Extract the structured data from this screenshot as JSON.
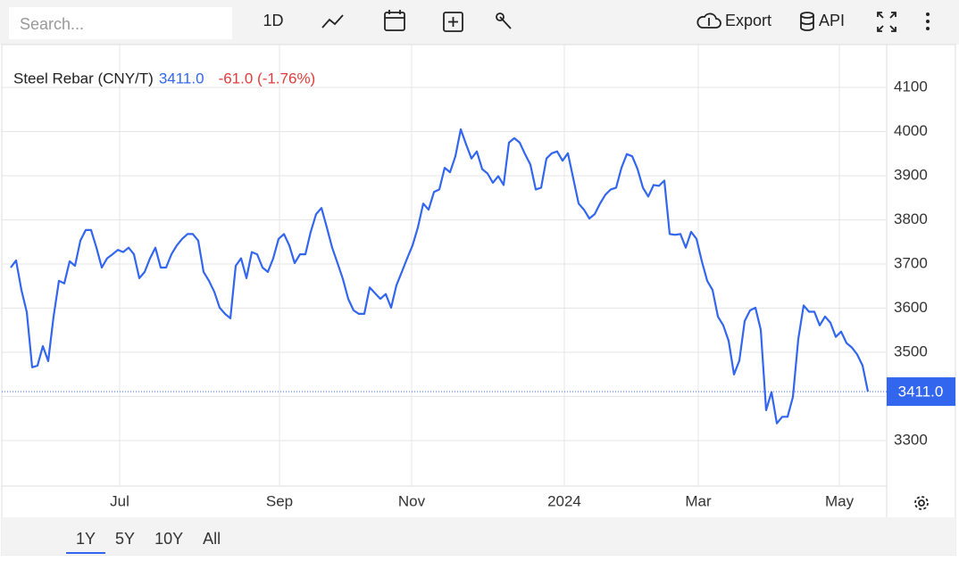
{
  "toolbar": {
    "search_placeholder": "Search...",
    "interval": "1D",
    "export": "Export",
    "api": "API"
  },
  "range_buttons": [
    "1Y",
    "5Y",
    "10Y",
    "All"
  ],
  "chart_data": {
    "type": "line",
    "title": "Steel Rebar (CNY/T)",
    "price": "3411.0",
    "change": "-61.0 (-1.76%)",
    "color": "#3366ee",
    "grid": true,
    "ylim": [
      3197,
      4197
    ],
    "yticks": [
      3300,
      3400,
      3500,
      3600,
      3700,
      3800,
      3900,
      4000,
      4100
    ],
    "xticks": [
      {
        "value": 20.33,
        "label": "Jul"
      },
      {
        "value": 50.17,
        "label": "Sep"
      },
      {
        "value": 74.83,
        "label": "Nov"
      },
      {
        "value": 103.33,
        "label": "2024"
      },
      {
        "value": 128.33,
        "label": "Mar"
      },
      {
        "value": 154.67,
        "label": "May"
      }
    ],
    "values": [
      3692,
      3708,
      3641,
      3591,
      3466,
      3470,
      3514,
      3480,
      3581,
      3662,
      3656,
      3706,
      3696,
      3753,
      3777,
      3777,
      3737,
      3692,
      3713,
      3722,
      3732,
      3727,
      3737,
      3722,
      3668,
      3682,
      3713,
      3737,
      3692,
      3692,
      3722,
      3742,
      3757,
      3768,
      3768,
      3753,
      3682,
      3662,
      3637,
      3601,
      3587,
      3577,
      3696,
      3713,
      3668,
      3727,
      3722,
      3692,
      3682,
      3713,
      3757,
      3768,
      3742,
      3702,
      3722,
      3722,
      3773,
      3813,
      3827,
      3783,
      3737,
      3702,
      3666,
      3621,
      3595,
      3587,
      3587,
      3647,
      3634,
      3621,
      3632,
      3601,
      3652,
      3682,
      3713,
      3742,
      3783,
      3837,
      3823,
      3863,
      3869,
      3918,
      3908,
      3944,
      4005,
      3971,
      3939,
      3955,
      3915,
      3905,
      3884,
      3899,
      3879,
      3975,
      3985,
      3975,
      3949,
      3925,
      3869,
      3873,
      3939,
      3951,
      3955,
      3934,
      3951,
      3894,
      3837,
      3823,
      3803,
      3813,
      3837,
      3857,
      3869,
      3873,
      3918,
      3949,
      3944,
      3915,
      3873,
      3853,
      3879,
      3877,
      3889,
      3768,
      3766,
      3768,
      3737,
      3773,
      3757,
      3706,
      3662,
      3641,
      3581,
      3561,
      3526,
      3450,
      3481,
      3571,
      3595,
      3601,
      3551,
      3369,
      3410,
      3339,
      3354,
      3354,
      3399,
      3530,
      3606,
      3592,
      3592,
      3561,
      3581,
      3567,
      3535,
      3547,
      3521,
      3511,
      3495,
      3470,
      3411
    ]
  }
}
